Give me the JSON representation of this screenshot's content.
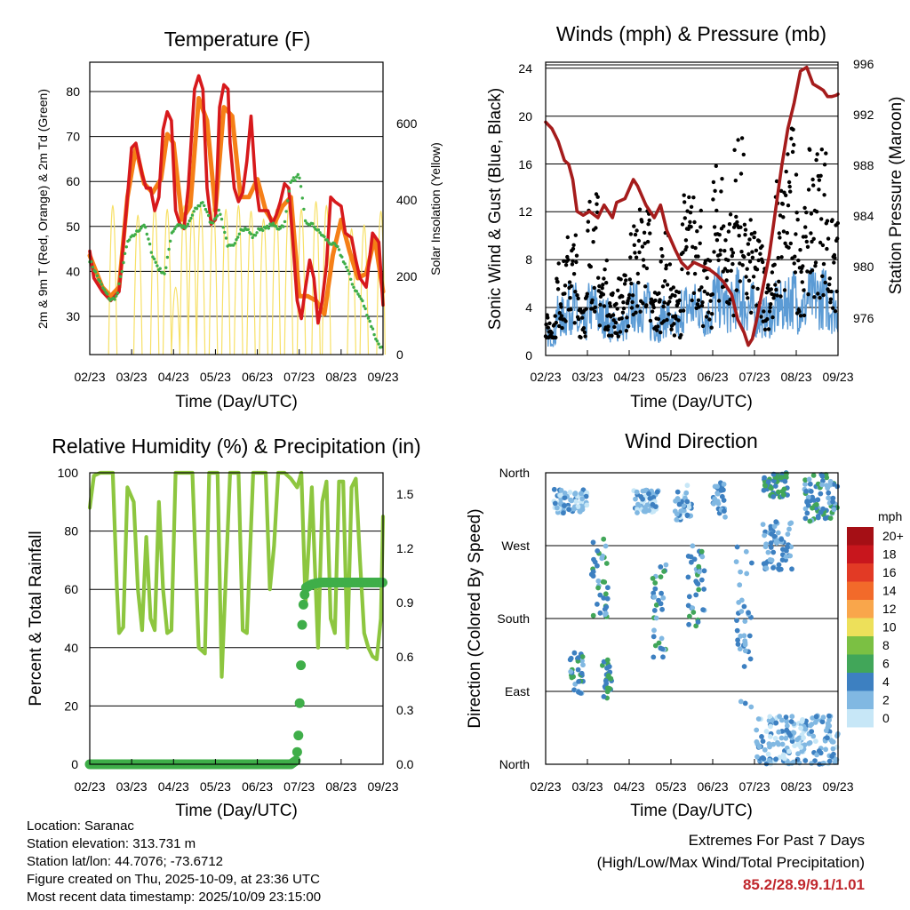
{
  "chart_data": [
    {
      "type": "line",
      "title": "Temperature (F)",
      "xlabel": "Time (Day/UTC)",
      "ylabel": "2m & 9m T (Red, Orange) & 2m Td (Green)",
      "y2label": "Solar Insolation (Yellow)",
      "x_ticks": [
        "02/23",
        "03/23",
        "04/23",
        "05/23",
        "06/23",
        "07/23",
        "08/23",
        "09/23"
      ],
      "ylim": [
        23,
        88
      ],
      "y_ticks": [
        30,
        40,
        50,
        60,
        70,
        80
      ],
      "y2lim": [
        0,
        750
      ],
      "y2_ticks": [
        0,
        200,
        400,
        600
      ],
      "series": [
        {
          "name": "2m T",
          "color": "#d7191c",
          "x": [
            0,
            0.1,
            0.3,
            0.5,
            0.7,
            0.9,
            1.0,
            1.1,
            1.25,
            1.35,
            1.45,
            1.55,
            1.65,
            1.75,
            1.85,
            1.95,
            2.05,
            2.15,
            2.25,
            2.35,
            2.5,
            2.6,
            2.7,
            2.8,
            2.9,
            3.0,
            3.1,
            3.2,
            3.3,
            3.35,
            3.45,
            3.55,
            3.65,
            3.75,
            3.85,
            3.95,
            4.05,
            4.15,
            4.25,
            4.35,
            4.45,
            4.55,
            4.65,
            4.75,
            4.85,
            4.95,
            5.05,
            5.15,
            5.25,
            5.35,
            5.45,
            5.55,
            5.65,
            5.75,
            5.85,
            6.0,
            6.1,
            6.25,
            6.35,
            6.45,
            6.6,
            6.75,
            6.9,
            7.0
          ],
          "values": [
            46,
            40,
            37,
            35,
            37,
            58,
            69,
            70,
            63,
            60,
            60,
            55,
            58,
            73,
            77,
            75,
            55,
            52,
            51,
            60,
            82,
            85,
            82,
            60,
            52,
            53,
            78,
            83,
            82,
            70,
            60,
            57,
            59,
            66,
            76,
            62,
            55,
            55,
            55,
            52,
            54,
            57,
            61,
            60,
            48,
            35,
            31,
            38,
            44,
            40,
            30,
            35,
            43,
            58,
            57,
            56,
            50,
            49,
            44,
            40,
            38,
            50,
            48,
            34
          ]
        },
        {
          "name": "9m T",
          "color": "#f57f17",
          "x": [
            0,
            0.3,
            0.5,
            0.7,
            0.9,
            1.1,
            1.3,
            1.5,
            1.7,
            1.85,
            2.0,
            2.2,
            2.4,
            2.6,
            2.8,
            3.0,
            3.2,
            3.4,
            3.6,
            3.8,
            4.0,
            4.2,
            4.4,
            4.6,
            4.8,
            5.0,
            5.2,
            5.4,
            5.6,
            5.8,
            6.0,
            6.2,
            6.4,
            6.6,
            6.8,
            7.0
          ],
          "values": [
            45,
            38,
            36,
            38,
            58,
            69,
            61,
            59,
            62,
            72,
            70,
            53,
            56,
            80,
            75,
            55,
            78,
            76,
            58,
            58,
            62,
            55,
            52,
            56,
            58,
            36,
            36,
            35,
            32,
            45,
            53,
            46,
            40,
            41,
            49,
            37
          ]
        },
        {
          "name": "2m Td",
          "color": "#3fae49",
          "dots": true,
          "x": [
            0,
            0.1,
            0.3,
            0.5,
            0.65,
            0.9,
            1.1,
            1.3,
            1.5,
            1.65,
            1.8,
            1.95,
            2.1,
            2.3,
            2.5,
            2.7,
            2.9,
            3.1,
            3.3,
            3.45,
            3.6,
            3.75,
            3.9,
            4.05,
            4.2,
            4.35,
            4.5,
            4.65,
            4.8,
            4.9,
            5.0,
            5.15,
            5.3,
            5.5,
            5.7,
            5.9,
            6.1,
            6.3,
            6.5,
            6.7,
            6.85,
            7.0
          ],
          "values": [
            44,
            42,
            38,
            35,
            36,
            48,
            50,
            52,
            45,
            42,
            41,
            50,
            52,
            51,
            55,
            57,
            52,
            55,
            47,
            47,
            51,
            51,
            49,
            51,
            51,
            52,
            51,
            52,
            62,
            62,
            63,
            52,
            52,
            50,
            48,
            47,
            43,
            38,
            35,
            30,
            26,
            24
          ]
        },
        {
          "name": "Solar Insolation",
          "color": "#f7e066",
          "axis": "y2",
          "peaks_x": [
            0.55,
            1.15,
            1.55,
            1.85,
            2.05,
            2.25,
            2.45,
            2.65,
            2.95,
            3.25,
            3.55,
            3.85,
            4.15,
            4.45,
            4.75,
            5.05,
            5.4,
            5.65,
            6.25,
            6.55,
            6.95
          ],
          "peaks": [
            720,
            670,
            720,
            700,
            300,
            720,
            690,
            710,
            710,
            700,
            720,
            690,
            650,
            700,
            720,
            700,
            740,
            720,
            600,
            620,
            690
          ]
        }
      ]
    },
    {
      "type": "scatter",
      "title": "Winds (mph) & Pressure (mb)",
      "xlabel": "Time (Day/UTC)",
      "ylabel": "Sonic Wind & Gust (Blue, Black)",
      "y2label": "Station Pressure (Maroon)",
      "x_ticks": [
        "02/23",
        "03/23",
        "04/23",
        "05/23",
        "06/23",
        "07/23",
        "08/23",
        "09/23"
      ],
      "ylim": [
        0,
        24.5
      ],
      "y_ticks": [
        0,
        4,
        8,
        12,
        16,
        20,
        24
      ],
      "y2lim": [
        973.2,
        996.2
      ],
      "y2_ticks": [
        976,
        980,
        984,
        988,
        992,
        996
      ],
      "series": [
        {
          "name": "Station Pressure",
          "color": "#a51c1c",
          "axis": "y2",
          "x": [
            0,
            0.15,
            0.3,
            0.45,
            0.55,
            0.65,
            0.75,
            0.9,
            1.05,
            1.25,
            1.4,
            1.6,
            1.7,
            1.9,
            2.1,
            2.2,
            2.4,
            2.6,
            2.75,
            2.9,
            3.1,
            3.25,
            3.4,
            3.55,
            3.75,
            3.9,
            4.1,
            4.25,
            4.45,
            4.6,
            4.75,
            4.85,
            4.95,
            5.05,
            5.2,
            5.35,
            5.5,
            5.65,
            5.8,
            5.95,
            6.1,
            6.25,
            6.4,
            6.55,
            6.65,
            6.75,
            6.85,
            6.95,
            7.0
          ],
          "values": [
            991.5,
            991,
            990,
            988.5,
            988.2,
            987,
            984.5,
            984.2,
            984.5,
            984,
            985,
            984,
            985.2,
            985.5,
            987,
            986.5,
            985,
            984,
            985,
            983,
            981.5,
            980.5,
            980,
            980.5,
            980.2,
            980,
            979.5,
            979,
            978,
            976,
            975,
            974,
            974.5,
            976,
            978.5,
            981,
            984.5,
            988,
            991,
            993,
            995.5,
            995.8,
            994.5,
            994.2,
            994,
            993.5,
            993.5,
            993.6,
            993.7
          ]
        },
        {
          "name": "Gust",
          "color": "#000000",
          "dots": true,
          "day_base": [
            3,
            7,
            9,
            5,
            12,
            7,
            5,
            6,
            10,
            11,
            5,
            9,
            5,
            12,
            12,
            7,
            14,
            11,
            16,
            10,
            9,
            7,
            13,
            17,
            11,
            15,
            16,
            10
          ]
        },
        {
          "name": "Sonic Wind",
          "color": "#5b9bd5",
          "day_base": [
            2,
            4,
            5,
            3,
            5,
            4,
            3,
            3,
            5,
            5,
            3,
            4,
            3,
            5,
            5,
            4,
            6,
            5,
            6,
            5,
            4,
            4,
            5,
            6,
            5,
            6,
            6,
            5
          ]
        }
      ]
    },
    {
      "type": "line",
      "title": "Relative Humidity (%) & Precipitation (in)",
      "xlabel": "Time (Day/UTC)",
      "ylabel": "Percent & Total Rainfall",
      "x_ticks": [
        "02/23",
        "03/23",
        "04/23",
        "05/23",
        "06/23",
        "07/23",
        "08/23",
        "09/23"
      ],
      "ylim": [
        0,
        100
      ],
      "y_ticks": [
        0,
        20,
        40,
        60,
        80,
        100
      ],
      "y2lim": [
        0,
        1.62
      ],
      "y2_ticks": [
        "0.0",
        "0.3",
        "0.6",
        "0.9",
        "1.2",
        "1.5"
      ],
      "series": [
        {
          "name": "Relative Humidity",
          "color": "#8dc63f",
          "x": [
            0,
            0.1,
            0.25,
            0.4,
            0.55,
            0.65,
            0.7,
            0.8,
            0.9,
            1.05,
            1.15,
            1.25,
            1.35,
            1.45,
            1.55,
            1.65,
            1.75,
            1.85,
            1.95,
            2.05,
            2.25,
            2.45,
            2.6,
            2.75,
            2.85,
            2.95,
            3.05,
            3.15,
            3.35,
            3.55,
            3.65,
            3.75,
            3.9,
            4.0,
            4.1,
            4.2,
            4.3,
            4.4,
            4.5,
            4.65,
            4.8,
            4.95,
            5.05,
            5.15,
            5.3,
            5.45,
            5.55,
            5.65,
            5.75,
            5.85,
            5.95,
            6.05,
            6.15,
            6.25,
            6.35,
            6.45,
            6.55,
            6.65,
            6.75,
            6.85,
            6.95,
            7.0
          ],
          "values": [
            88,
            99,
            100,
            100,
            100,
            60,
            45,
            47,
            95,
            90,
            60,
            46,
            78,
            50,
            46,
            90,
            60,
            45,
            46,
            100,
            100,
            100,
            40,
            38,
            100,
            100,
            100,
            30,
            100,
            100,
            46,
            45,
            100,
            100,
            100,
            100,
            60,
            75,
            100,
            100,
            98,
            95,
            100,
            55,
            95,
            40,
            90,
            97,
            50,
            45,
            97,
            97,
            40,
            95,
            98,
            70,
            45,
            40,
            37,
            36,
            50,
            85
          ]
        },
        {
          "name": "Total Precipitation",
          "color": "#3fae49",
          "axis": "y2",
          "dots": true,
          "x": [
            0,
            1,
            2,
            3,
            4,
            4.5,
            4.8,
            4.92,
            4.97,
            5.02,
            5.08,
            5.15,
            5.3,
            5.5,
            6,
            7
          ],
          "values": [
            0,
            0,
            0,
            0,
            0,
            0,
            0,
            0.02,
            0.1,
            0.4,
            0.85,
            0.98,
            1.0,
            1.01,
            1.01,
            1.01
          ]
        }
      ]
    },
    {
      "type": "scatter",
      "title": "Wind Direction",
      "xlabel": "Time (Day/UTC)",
      "ylabel": "Direction (Colored By Speed)",
      "x_ticks": [
        "02/23",
        "03/23",
        "04/23",
        "05/23",
        "06/23",
        "07/23",
        "08/23",
        "09/23"
      ],
      "y_ticks": [
        "North",
        "West",
        "South",
        "East",
        "North"
      ],
      "legend": {
        "title": "mph",
        "labels": [
          "20+",
          "18",
          "16",
          "14",
          "12",
          "10",
          "8",
          "6",
          "4",
          "2",
          "0"
        ],
        "colors": [
          "#a50f15",
          "#c8161d",
          "#e23a25",
          "#f26a2a",
          "#f9a64b",
          "#ede05a",
          "#7bc043",
          "#41a659",
          "#3d80c1",
          "#81b8e2",
          "#c7e7f7"
        ]
      },
      "clusters": [
        {
          "x": [
            0.2,
            1.0
          ],
          "dir": [
            310,
            340
          ],
          "speed": 2
        },
        {
          "x": [
            0.55,
            0.9
          ],
          "dir": [
            80,
            140
          ],
          "speed": 4
        },
        {
          "x": [
            1.1,
            1.5
          ],
          "dir": [
            180,
            280
          ],
          "speed": 4
        },
        {
          "x": [
            1.35,
            1.6
          ],
          "dir": [
            80,
            130
          ],
          "speed": 5
        },
        {
          "x": [
            2.1,
            2.7
          ],
          "dir": [
            310,
            340
          ],
          "speed": 2
        },
        {
          "x": [
            2.55,
            2.9
          ],
          "dir": [
            130,
            250
          ],
          "speed": 4
        },
        {
          "x": [
            3.1,
            3.5
          ],
          "dir": [
            300,
            345
          ],
          "speed": 2
        },
        {
          "x": [
            3.4,
            3.8
          ],
          "dir": [
            170,
            270
          ],
          "speed": 4
        },
        {
          "x": [
            4.0,
            4.3
          ],
          "dir": [
            300,
            350
          ],
          "speed": 3
        },
        {
          "x": [
            4.55,
            4.95
          ],
          "dir": [
            70,
            270
          ],
          "speed": 3
        },
        {
          "x": [
            5.2,
            5.8
          ],
          "dir": [
            330,
            360
          ],
          "speed": 5
        },
        {
          "x": [
            5.2,
            5.9
          ],
          "dir": [
            240,
            300
          ],
          "speed": 3
        },
        {
          "x": [
            6.2,
            7.0
          ],
          "dir": [
            300,
            360
          ],
          "speed": 4
        },
        {
          "x": [
            5.0,
            7.0
          ],
          "dir": [
            0,
            60
          ],
          "speed": 2
        }
      ]
    }
  ],
  "station": {
    "location": "Location: Saranac",
    "elevation": "Station elevation: 313.731 m",
    "latlon": "Station lat/lon: 44.7076; -73.6712",
    "created": "Figure created on Thu, 2025-10-09, at 23:36 UTC",
    "recent": "Most recent data timestamp: 2025/10/09 23:15:00"
  },
  "extremes": {
    "title": "Extremes For Past 7 Days",
    "subtitle": "(High/Low/Max Wind/Total Precipitation)",
    "values": "85.2/28.9/9.1/1.01",
    "color": "#c0272d"
  }
}
